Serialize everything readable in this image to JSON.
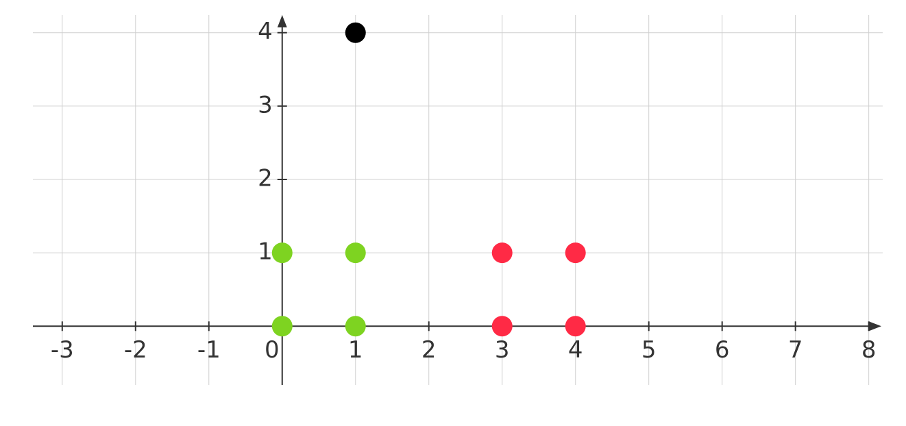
{
  "chart_data": {
    "type": "scatter",
    "xlim": [
      -3.4,
      8.19
    ],
    "ylim": [
      -0.8,
      4.24
    ],
    "xticks": [
      -3,
      -2,
      -1,
      0,
      1,
      2,
      3,
      4,
      5,
      6,
      7,
      8
    ],
    "yticks": [
      1,
      2,
      3,
      4
    ],
    "grid": true,
    "series": [
      {
        "color": "#7ed321",
        "x": [
          0,
          1,
          0,
          1
        ],
        "values": [
          0,
          0,
          1,
          1
        ]
      },
      {
        "color": "#ff2a45",
        "x": [
          3,
          4,
          3,
          4
        ],
        "values": [
          0,
          0,
          1,
          1
        ]
      },
      {
        "color": "#000000",
        "x": [
          1
        ],
        "values": [
          4
        ]
      }
    ]
  }
}
